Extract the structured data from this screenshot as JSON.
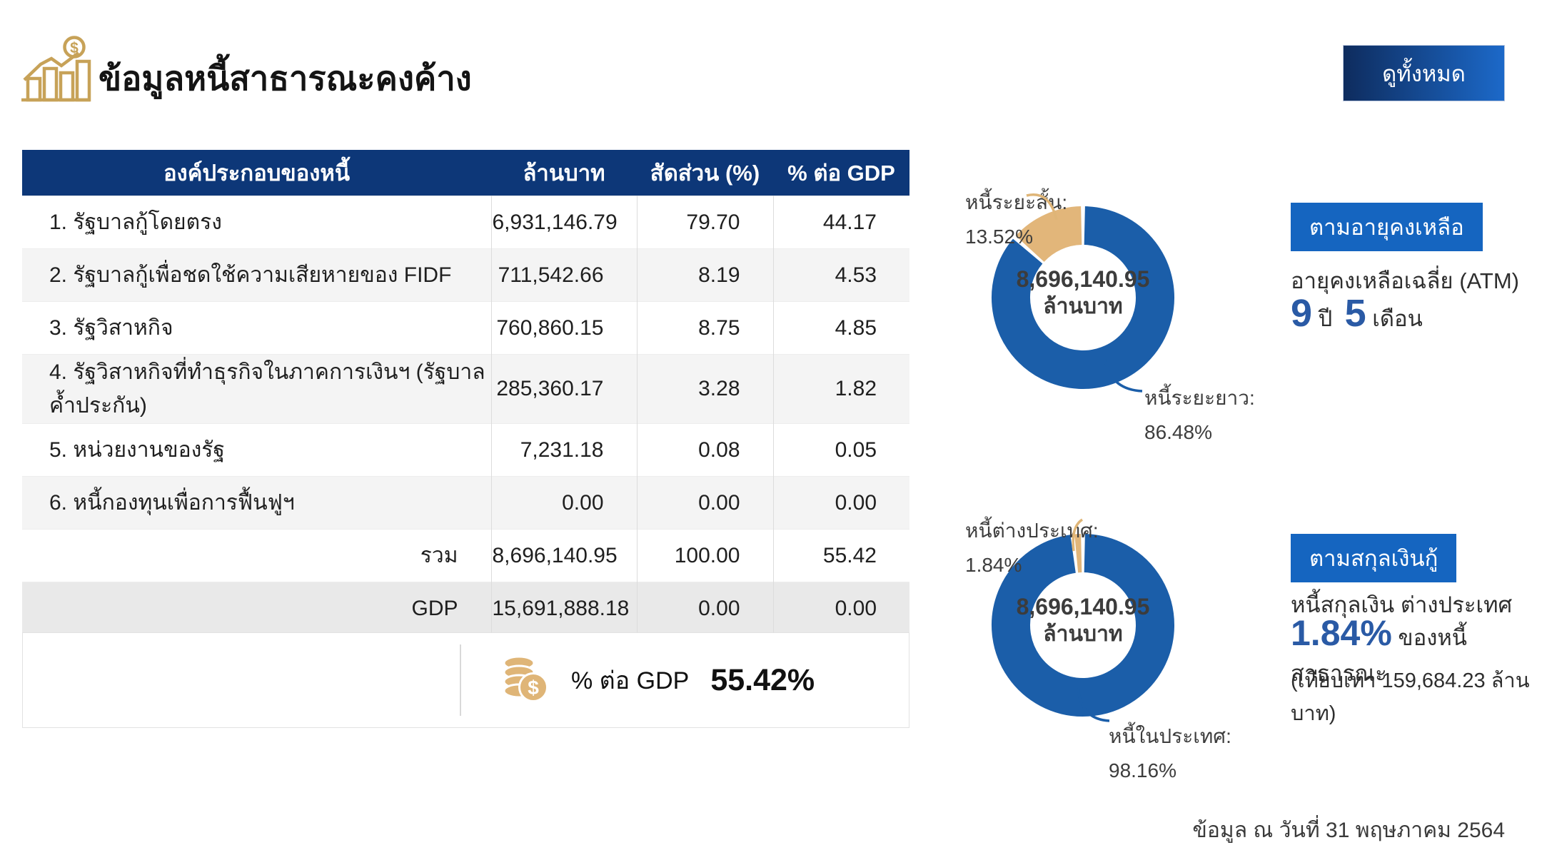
{
  "header": {
    "title": "ข้อมูลหนี้สาธารณะคงค้าง",
    "view_all_label": "ดูทั้งหมด"
  },
  "table": {
    "headers": [
      "องค์ประกอบของหนี้",
      "ล้านบาท",
      "สัดส่วน (%)",
      "% ต่อ GDP"
    ],
    "rows": [
      {
        "label": "1. รัฐบาลกู้โดยตรง",
        "million_baht": "6,931,146.79",
        "share_pct": "79.70",
        "pct_gdp": "44.17"
      },
      {
        "label": "2. รัฐบาลกู้เพื่อชดใช้ความเสียหายของ FIDF",
        "million_baht": "711,542.66",
        "share_pct": "8.19",
        "pct_gdp": "4.53"
      },
      {
        "label": "3. รัฐวิสาหกิจ",
        "million_baht": "760,860.15",
        "share_pct": "8.75",
        "pct_gdp": "4.85"
      },
      {
        "label": "4. รัฐวิสาหกิจที่ทำธุรกิจในภาคการเงินฯ (รัฐบาลค้ำประกัน)",
        "million_baht": "285,360.17",
        "share_pct": "3.28",
        "pct_gdp": "1.82"
      },
      {
        "label": "5. หน่วยงานของรัฐ",
        "million_baht": "7,231.18",
        "share_pct": "0.08",
        "pct_gdp": "0.05"
      },
      {
        "label": "6. หนี้กองทุนเพื่อการฟื้นฟูฯ",
        "million_baht": "0.00",
        "share_pct": "0.00",
        "pct_gdp": "0.00"
      }
    ],
    "total_row": {
      "label": "รวม",
      "million_baht": "8,696,140.95",
      "share_pct": "100.00",
      "pct_gdp": "55.42"
    },
    "gdp_row": {
      "label": "GDP",
      "million_baht": "15,691,888.18",
      "share_pct": "0.00",
      "pct_gdp": "0.00"
    }
  },
  "summary": {
    "label": "% ต่อ GDP",
    "value": "55.42%"
  },
  "chart_data": [
    {
      "type": "pie",
      "title": "ตามอายุคงเหลือ",
      "center_value": "8,696,140.95",
      "center_unit": "ล้านบาท",
      "legend_position": "callouts",
      "segments": [
        {
          "label": "หนี้ระยะยาว",
          "callout": "หนี้ระยะยาว:",
          "value": 86.48,
          "pct_label": "86.48%",
          "color": "#1b5ea9"
        },
        {
          "label": "หนี้ระยะสั้น",
          "callout": "หนี้ระยะสั้น:",
          "value": 13.52,
          "pct_label": "13.52%",
          "color": "#e2b67a"
        }
      ]
    },
    {
      "type": "pie",
      "title": "ตามสกุลเงินกู้",
      "center_value": "8,696,140.95",
      "center_unit": "ล้านบาท",
      "legend_position": "callouts",
      "segments": [
        {
          "label": "หนี้ในประเทศ",
          "callout": "หนี้ในประเทศ:",
          "value": 98.16,
          "pct_label": "98.16%",
          "color": "#1b5ea9"
        },
        {
          "label": "หนี้ต่างประเทศ",
          "callout": "หนี้ต่างประเทศ:",
          "value": 1.84,
          "pct_label": "1.84%",
          "color": "#e2b67a"
        }
      ]
    }
  ],
  "panels": [
    {
      "badge": "ตามอายุคงเหลือ",
      "line1": "อายุคงเหลือเฉลี่ย (ATM)",
      "value1": "9",
      "unit1": "ปี",
      "value2": "5",
      "unit2": "เดือน"
    },
    {
      "badge": "ตามสกุลเงินกู้",
      "line1": "หนี้สกุลเงิน ต่างประเทศ",
      "value": "1.84%",
      "value_suffix": "ของหนี้สาธารณะ",
      "note": "(เทียบเท่า 159,684.23 ล้านบาท)"
    }
  ],
  "footer": {
    "as_of": "ข้อมูล ณ วันที่ 31 พฤษภาคม 2564"
  },
  "colors": {
    "header_navy": "#0d3778",
    "donut_blue": "#1b5ea9",
    "gold": "#e2b67a",
    "badge_blue": "#1565c0",
    "value_blue": "#2a5aa5"
  }
}
